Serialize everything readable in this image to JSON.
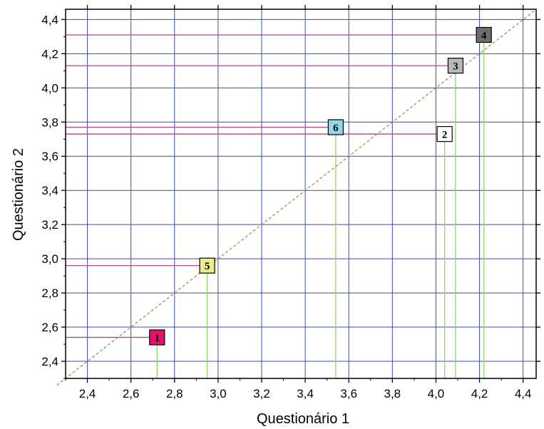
{
  "chart_data": {
    "type": "scatter",
    "xlabel": "Questionário 1",
    "ylabel": "Questionário 2",
    "xlim": [
      2.3,
      4.46
    ],
    "ylim": [
      2.3,
      4.46
    ],
    "x_ticks": [
      2.4,
      2.6,
      2.8,
      3.0,
      3.2,
      3.4,
      3.6,
      3.8,
      4.0,
      4.2,
      4.4
    ],
    "y_ticks": [
      2.4,
      2.6,
      2.8,
      3.0,
      3.2,
      3.4,
      3.6,
      3.8,
      4.0,
      4.2,
      4.4
    ],
    "x_tick_labels": [
      "2,4",
      "2,6",
      "2,8",
      "3,0",
      "3,2",
      "3,4",
      "3,6",
      "3,8",
      "4,0",
      "4,2",
      "4,4"
    ],
    "y_tick_labels": [
      "2,4",
      "2,6",
      "2,8",
      "3,0",
      "3,2",
      "3,4",
      "3,6",
      "3,8",
      "4,0",
      "4,2",
      "4,4"
    ],
    "grid": true,
    "reference_line": "y = x (dashed)",
    "points": [
      {
        "label": "1",
        "x": 2.72,
        "y": 2.54,
        "fill": "#e3136b",
        "text_color": "#000000"
      },
      {
        "label": "2",
        "x": 4.04,
        "y": 3.73,
        "fill": "#ffffff",
        "text_color": "#000000"
      },
      {
        "label": "3",
        "x": 4.09,
        "y": 4.13,
        "fill": "#b9b9b9",
        "text_color": "#000000"
      },
      {
        "label": "4",
        "x": 4.22,
        "y": 4.31,
        "fill": "#6e6e6e",
        "text_color": "#000000"
      },
      {
        "label": "5",
        "x": 2.95,
        "y": 2.96,
        "fill": "#ecec8a",
        "text_color": "#000000"
      },
      {
        "label": "6",
        "x": 3.54,
        "y": 3.77,
        "fill": "#8fd8ec",
        "text_color": "#000000"
      }
    ],
    "colors": {
      "grid": "#3a4db5",
      "horizontal_drop": "#b0468f",
      "vertical_drop": "#8fd66b",
      "diagonal": "#9a8a48"
    }
  }
}
